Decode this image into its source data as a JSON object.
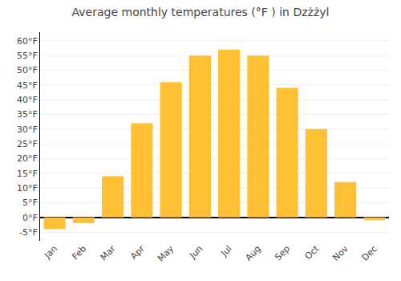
{
  "chart_data": {
    "type": "bar",
    "title": "Average monthly temperatures (°F ) in Dzżżyl",
    "categories": [
      "Jan",
      "Feb",
      "Mar",
      "Apr",
      "May",
      "Jun",
      "Jul",
      "Aug",
      "Sep",
      "Oct",
      "Nov",
      "Dec"
    ],
    "values": [
      -4,
      -2,
      14,
      32,
      46,
      55,
      57,
      55,
      44,
      30,
      12,
      -1
    ],
    "color": "#FFC033",
    "ylim": [
      -8,
      63
    ],
    "yticks": [
      {
        "value": -5,
        "label": "-5°F"
      },
      {
        "value": 0,
        "label": "0°F"
      },
      {
        "value": 5,
        "label": "5°F"
      },
      {
        "value": 10,
        "label": "10°F"
      },
      {
        "value": 15,
        "label": "15°F"
      },
      {
        "value": 20,
        "label": "20°F"
      },
      {
        "value": 25,
        "label": "25°F"
      },
      {
        "value": 30,
        "label": "30°F"
      },
      {
        "value": 35,
        "label": "35°F"
      },
      {
        "value": 40,
        "label": "40°F"
      },
      {
        "value": 45,
        "label": "45°F"
      },
      {
        "value": 50,
        "label": "50°F"
      },
      {
        "value": 55,
        "label": "55°F"
      },
      {
        "value": 60,
        "label": "60°F"
      }
    ],
    "grid": true
  }
}
